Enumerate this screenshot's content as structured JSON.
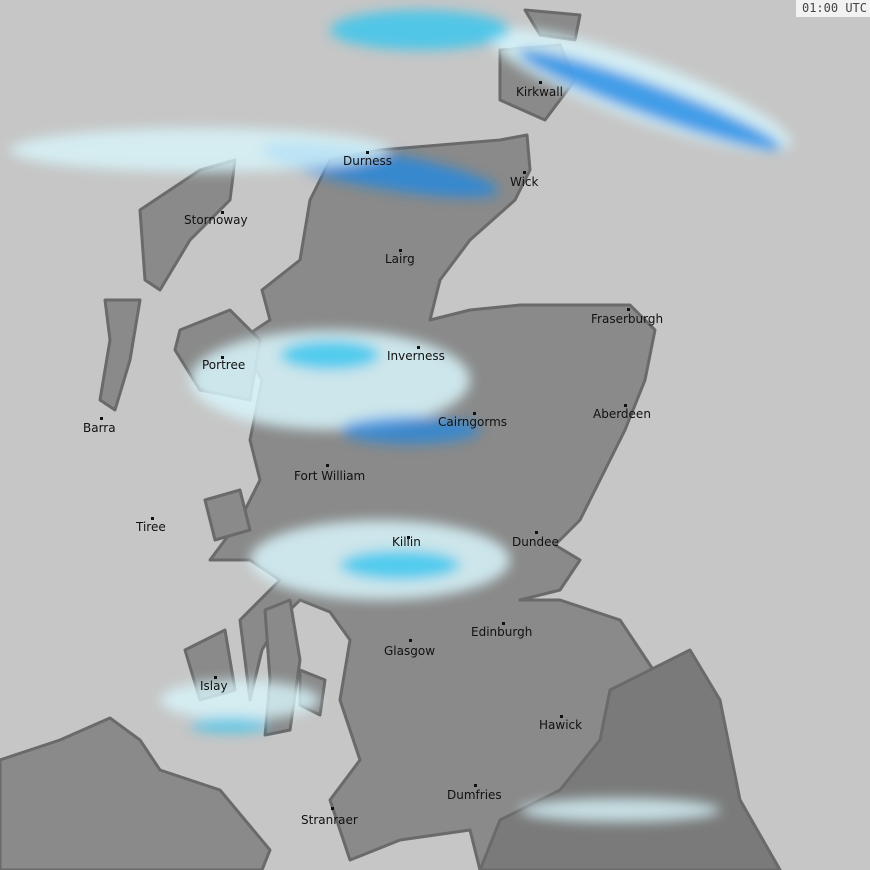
{
  "timestamp": "01:00 UTC",
  "colors": {
    "sea": "#c6c6c6",
    "land": "#8a8a8a",
    "land_dark": "#7a7a7a",
    "coast": "#6a6a6a",
    "rain_light": "#d8f6fb",
    "rain_mid": "#33c6ef",
    "rain_heavy": "#1e88e5"
  },
  "towns": [
    "Kirkwall",
    "Durness",
    "Wick",
    "Stornoway",
    "Lairg",
    "Fraserburgh",
    "Inverness",
    "Portree",
    "Barra",
    "Cairngorms",
    "Aberdeen",
    "Fort William",
    "Tiree",
    "Killin",
    "Dundee",
    "Edinburgh",
    "Glasgow",
    "Islay",
    "Hawick",
    "Dumfries",
    "Stranraer"
  ]
}
